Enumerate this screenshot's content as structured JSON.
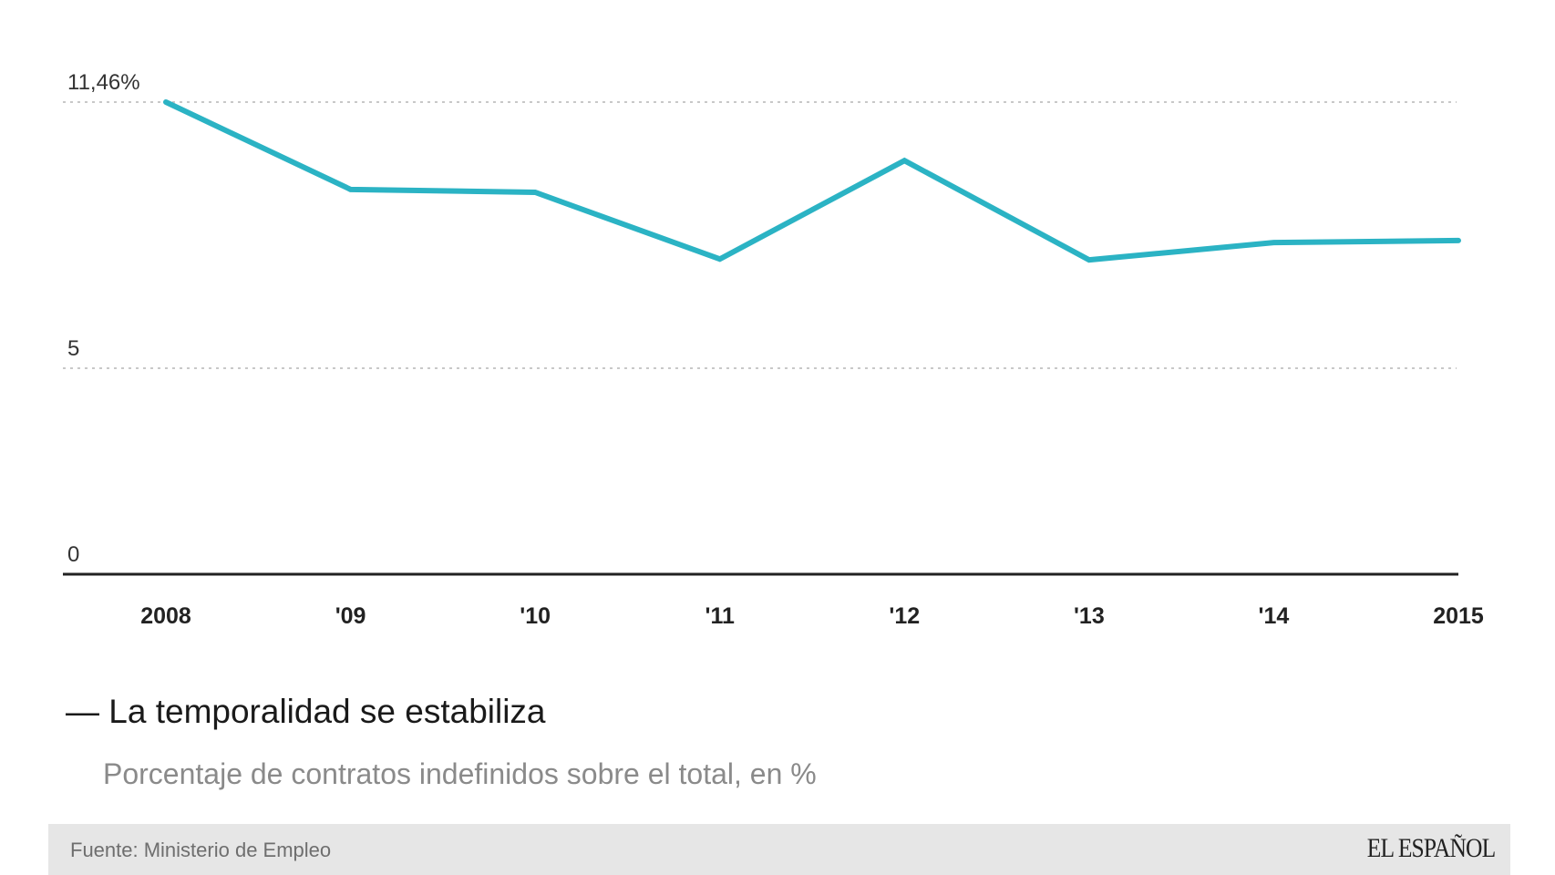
{
  "chart_data": {
    "type": "line",
    "title": "La temporalidad se estabiliza",
    "subtitle": "Porcentaje de contratos indefinidos sobre el total, en %",
    "categories": [
      "2008",
      "'09",
      "'10",
      "'11",
      "'12",
      "'13",
      "'14",
      "2015"
    ],
    "series": [
      {
        "name": "Contratos indefinidos (%)",
        "values": [
          11.46,
          9.34,
          9.27,
          7.65,
          10.04,
          7.63,
          8.05,
          8.1
        ],
        "color": "#2bb3c4"
      }
    ],
    "y_ticks": [
      {
        "value": 0,
        "label": "0"
      },
      {
        "value": 5,
        "label": "5"
      },
      {
        "value": 11.46,
        "label": "11,46%"
      }
    ],
    "ylim": [
      0,
      11.46
    ],
    "xlabel": "",
    "ylabel": "",
    "grid": true
  },
  "footer": {
    "source": "Fuente: Ministerio de Empleo",
    "logo": "EL ESPAÑOL"
  }
}
